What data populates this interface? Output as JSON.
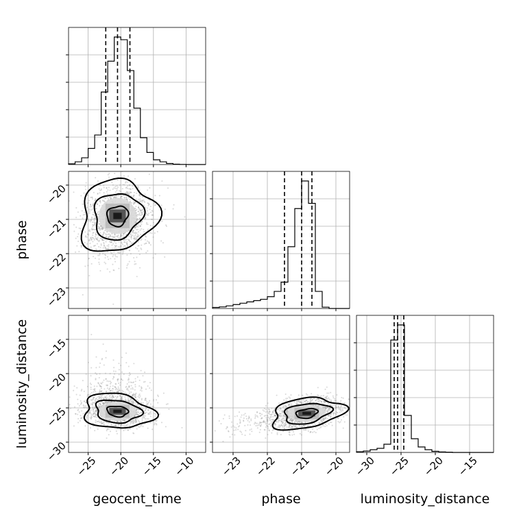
{
  "chart_data": {
    "type": "corner",
    "title": "",
    "parameters": [
      "geocent_time",
      "phase",
      "luminosity_distance"
    ],
    "grid": true,
    "legend": "none",
    "colors": {
      "ink": "#000000",
      "grid": "#b0b0b0",
      "scatter": "#8c8c8c",
      "density": "#555555"
    },
    "axes": {
      "geocent_time": {
        "range": [
          -28,
          -7
        ],
        "ticks": [
          -25,
          -20,
          -15,
          -10
        ],
        "tick_labels": [
          "−25",
          "−20",
          "−15",
          "−10"
        ]
      },
      "phase": {
        "range": [
          -23.6,
          -19.6
        ],
        "ticks": [
          -23,
          -22,
          -21,
          -20
        ],
        "tick_labels": [
          "−23",
          "−22",
          "−21",
          "−20"
        ]
      },
      "luminosity_distance": {
        "range": [
          -31.5,
          -11.5
        ],
        "ticks": [
          -30,
          -25,
          -20,
          -15
        ],
        "tick_labels": [
          "−30",
          "−25",
          "−20",
          "−15"
        ]
      }
    },
    "marginals": [
      {
        "parameter": "geocent_time",
        "quantiles": [
          -22.3,
          -20.5,
          -18.6
        ],
        "bin_edges": [
          -28,
          -27,
          -26,
          -25,
          -24,
          -23,
          -22,
          -21,
          -20,
          -19,
          -18,
          -17,
          -16,
          -15,
          -14,
          -13,
          -12,
          -11,
          -10,
          -9,
          -8,
          -7
        ],
        "counts": [
          0.005,
          0.02,
          0.05,
          0.12,
          0.22,
          0.54,
          0.77,
          0.95,
          0.93,
          0.7,
          0.42,
          0.2,
          0.09,
          0.035,
          0.02,
          0.008,
          0.003,
          0.001,
          0,
          0,
          0
        ]
      },
      {
        "parameter": "phase",
        "quantiles": [
          -21.5,
          -21.0,
          -20.7
        ],
        "bin_edges": [
          -23.6,
          -23.4,
          -23.2,
          -23.0,
          -22.8,
          -22.6,
          -22.4,
          -22.2,
          -22.0,
          -21.8,
          -21.6,
          -21.4,
          -21.2,
          -21.0,
          -20.8,
          -20.6,
          -20.4,
          -20.2,
          -20.0,
          -19.8,
          -19.6
        ],
        "counts": [
          0.008,
          0.012,
          0.02,
          0.03,
          0.04,
          0.05,
          0.06,
          0.07,
          0.09,
          0.13,
          0.2,
          0.47,
          0.76,
          0.97,
          0.8,
          0.13,
          0.01,
          0,
          0,
          0
        ]
      },
      {
        "parameter": "luminosity_distance",
        "quantiles": [
          -26.0,
          -25.5,
          -24.6
        ],
        "bin_edges": [
          -31.5,
          -30.5,
          -29.5,
          -28.5,
          -27.5,
          -26.5,
          -25.5,
          -24.5,
          -23.5,
          -22.5,
          -21.5,
          -20.5,
          -19.5,
          -18.5,
          -17.5,
          -16.5,
          -15.5,
          -14.5,
          -13.5,
          -12.5,
          -11.5
        ],
        "counts": [
          0.005,
          0.01,
          0.02,
          0.03,
          0.06,
          0.82,
          0.93,
          0.27,
          0.1,
          0.04,
          0.02,
          0.008,
          0.004,
          0.002,
          0,
          0,
          0,
          0,
          0,
          0
        ]
      }
    ],
    "joints": [
      {
        "x": "geocent_time",
        "y": "phase",
        "peak": [
          -20.5,
          -20.9
        ],
        "sigma": [
          2.3,
          0.42
        ],
        "correlation": 0.1,
        "outer_tail": {
          "direction": "low-y",
          "scale": 0.6
        },
        "contours_sigma": [
          0.7,
          1.6,
          2.5
        ]
      },
      {
        "x": "geocent_time",
        "y": "luminosity_distance",
        "peak": [
          -20.5,
          -25.5
        ],
        "sigma": [
          2.3,
          1.1
        ],
        "correlation": -0.15,
        "outer_tail": {
          "direction": "high-y",
          "scale": 0.8
        },
        "contours_sigma": [
          0.7,
          1.5,
          2.3
        ]
      },
      {
        "x": "phase",
        "y": "luminosity_distance",
        "peak": [
          -20.85,
          -25.8
        ],
        "sigma": [
          0.45,
          1.0
        ],
        "correlation": 0.3,
        "outer_tail": {
          "direction": "low-x",
          "scale": 0.7
        },
        "contours_sigma": [
          0.7,
          1.5,
          2.3
        ]
      }
    ]
  }
}
